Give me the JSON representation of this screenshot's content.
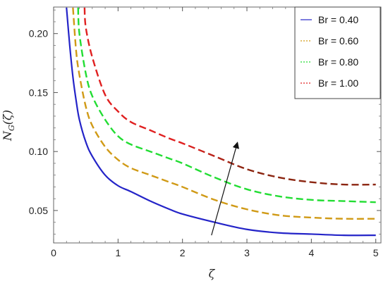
{
  "chart_data": {
    "type": "line",
    "title": "",
    "xlabel": "ζ",
    "ylabel": "N",
    "ylabel_sub": "G",
    "ylabel_suffix": "(ζ)",
    "xlim": [
      0,
      5.08
    ],
    "ylim": [
      0.0225,
      0.2225
    ],
    "xticks": [
      0,
      1,
      2,
      3,
      4,
      5
    ],
    "xtick_labels": [
      "0",
      "1",
      "2",
      "3",
      "4",
      "5"
    ],
    "yticks": [
      0.05,
      0.1,
      0.15,
      0.2
    ],
    "ytick_labels": [
      "0.05",
      "0.10",
      "0.15",
      "0.20"
    ],
    "legend_position": "top-right",
    "grid": false,
    "x": [
      0.5,
      0.6,
      0.8,
      1.0,
      1.2,
      1.5,
      1.8,
      2.0,
      2.5,
      3.0,
      3.5,
      4.0,
      4.5,
      5.0
    ],
    "series": [
      {
        "name": "Br = 0.40",
        "color": "#2424c8",
        "dashed": false,
        "x": [
          0.2,
          0.25,
          0.3,
          0.35,
          0.4,
          0.5,
          0.6,
          0.8,
          1.0,
          1.2,
          1.5,
          1.8,
          2.0,
          2.5,
          3.0,
          3.5,
          4.0,
          4.5,
          5.0
        ],
        "values": [
          0.222,
          0.19,
          0.163,
          0.143,
          0.127,
          0.108,
          0.096,
          0.08,
          0.071,
          0.066,
          0.058,
          0.051,
          0.047,
          0.04,
          0.034,
          0.031,
          0.03,
          0.029,
          0.029
        ]
      },
      {
        "name": "Br = 0.60",
        "color": "#d09a16",
        "dashed": true,
        "x": [
          0.3,
          0.35,
          0.4,
          0.5,
          0.6,
          0.8,
          1.0,
          1.2,
          1.5,
          1.8,
          2.0,
          2.5,
          3.0,
          3.5,
          4.0,
          4.5,
          5.0
        ],
        "values": [
          0.222,
          0.185,
          0.165,
          0.138,
          0.122,
          0.104,
          0.093,
          0.086,
          0.08,
          0.074,
          0.07,
          0.059,
          0.051,
          0.046,
          0.044,
          0.043,
          0.043
        ]
      },
      {
        "name": "Br = 0.80",
        "color": "#22dd33",
        "dashed": true,
        "x": [
          0.38,
          0.4,
          0.5,
          0.6,
          0.8,
          1.0,
          1.2,
          1.5,
          1.8,
          2.0,
          2.5,
          3.0,
          3.5,
          4.0,
          4.5,
          5.0
        ],
        "values": [
          0.222,
          0.2,
          0.166,
          0.147,
          0.127,
          0.113,
          0.106,
          0.1,
          0.094,
          0.09,
          0.078,
          0.068,
          0.062,
          0.059,
          0.058,
          0.057
        ]
      },
      {
        "name": "Br = 1.00",
        "color": "#e02020",
        "dashed": true,
        "x": [
          0.48,
          0.5,
          0.6,
          0.8,
          1.0,
          1.2,
          1.5,
          1.8,
          2.0,
          2.5,
          3.0,
          3.5,
          4.0,
          4.5,
          5.0
        ],
        "values": [
          0.222,
          0.205,
          0.18,
          0.148,
          0.134,
          0.125,
          0.118,
          0.111,
          0.107,
          0.096,
          0.085,
          0.078,
          0.074,
          0.072,
          0.072
        ],
        "color_end": "#8b2510"
      }
    ],
    "arrow": {
      "from": [
        2.45,
        0.029
      ],
      "to": [
        2.85,
        0.107
      ]
    }
  }
}
